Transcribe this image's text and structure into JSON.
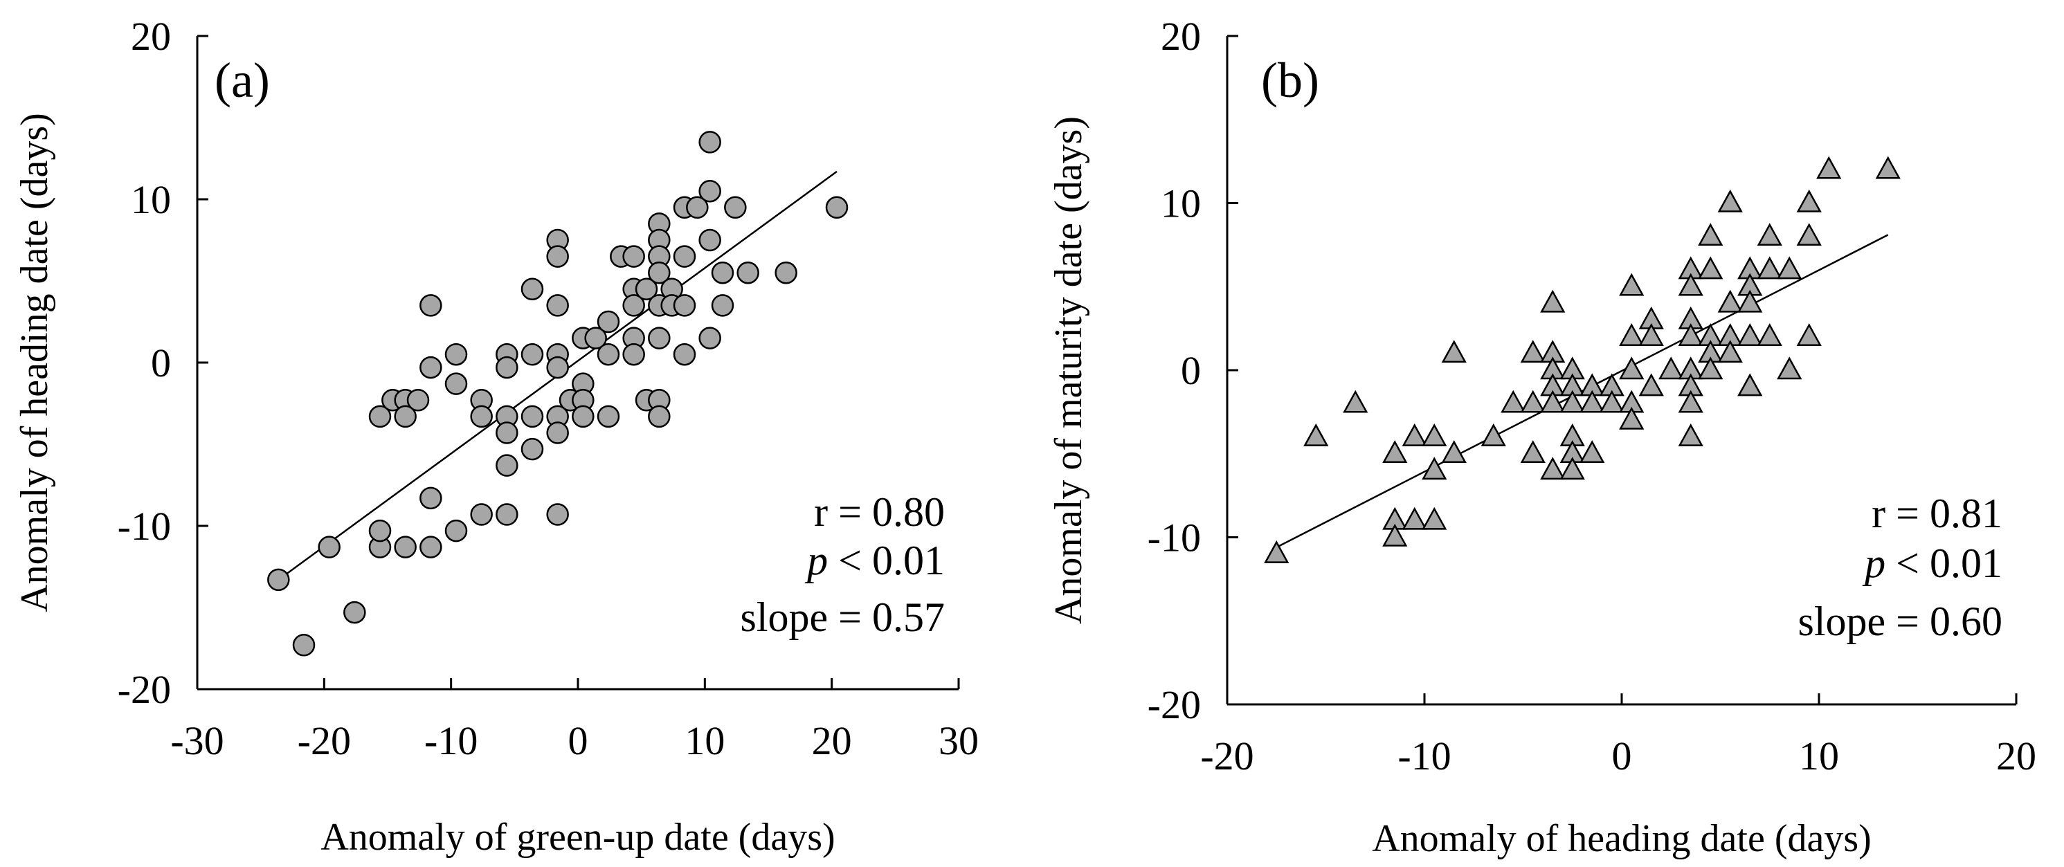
{
  "chart_data": [
    {
      "type": "scatter",
      "panel_label": "(a)",
      "xlabel": "Anomaly of green-up date (days)",
      "ylabel": "Anomaly of heading date (days)",
      "xlim": [
        -30,
        30
      ],
      "ylim": [
        -20,
        20
      ],
      "xticks": [
        -30,
        -20,
        -10,
        0,
        10,
        20,
        30
      ],
      "yticks": [
        -20,
        -10,
        0,
        10,
        20
      ],
      "marker": "circle",
      "marker_color": "#a6a6a6",
      "stats": {
        "r_text": "r = 0.80",
        "p_symbol": "p",
        "p_rest": " < 0.01",
        "slope_text": "slope = 0.57"
      },
      "fit_line": {
        "x": [
          -23.6,
          20.4
        ],
        "y": [
          -13.3,
          11.7
        ]
      },
      "points": [
        [
          -23.6,
          -13.3
        ],
        [
          -21.6,
          -17.3
        ],
        [
          -19.6,
          -11.3
        ],
        [
          -17.6,
          -15.3
        ],
        [
          -15.6,
          -11.3
        ],
        [
          -15.6,
          -10.3
        ],
        [
          -15.6,
          -3.3
        ],
        [
          -14.6,
          -2.3
        ],
        [
          -13.6,
          -2.3
        ],
        [
          -13.6,
          -3.3
        ],
        [
          -13.6,
          -11.3
        ],
        [
          -12.6,
          -2.3
        ],
        [
          -11.6,
          3.5
        ],
        [
          -11.6,
          -0.3
        ],
        [
          -11.6,
          -8.3
        ],
        [
          -11.6,
          -11.3
        ],
        [
          -9.6,
          0.5
        ],
        [
          -9.6,
          -1.3
        ],
        [
          -9.6,
          -10.3
        ],
        [
          -7.6,
          -2.3
        ],
        [
          -7.6,
          -3.3
        ],
        [
          -7.6,
          -9.3
        ],
        [
          -5.6,
          0.5
        ],
        [
          -5.6,
          -0.3
        ],
        [
          -5.6,
          -3.3
        ],
        [
          -5.6,
          -4.3
        ],
        [
          -5.6,
          -6.3
        ],
        [
          -5.6,
          -9.3
        ],
        [
          -3.6,
          4.5
        ],
        [
          -3.6,
          0.5
        ],
        [
          -3.6,
          -3.3
        ],
        [
          -3.6,
          -5.3
        ],
        [
          -1.6,
          7.5
        ],
        [
          -1.6,
          6.5
        ],
        [
          -1.6,
          3.5
        ],
        [
          -1.6,
          0.5
        ],
        [
          -1.6,
          -0.3
        ],
        [
          -1.6,
          -3.3
        ],
        [
          -1.6,
          -4.3
        ],
        [
          -1.6,
          -9.3
        ],
        [
          -0.6,
          -2.3
        ],
        [
          0.4,
          1.5
        ],
        [
          0.4,
          -1.3
        ],
        [
          0.4,
          -2.3
        ],
        [
          0.4,
          -3.3
        ],
        [
          1.4,
          1.5
        ],
        [
          2.4,
          2.5
        ],
        [
          2.4,
          0.5
        ],
        [
          2.4,
          -3.3
        ],
        [
          3.4,
          6.5
        ],
        [
          4.4,
          6.5
        ],
        [
          4.4,
          4.5
        ],
        [
          4.4,
          3.5
        ],
        [
          4.4,
          1.5
        ],
        [
          4.4,
          0.5
        ],
        [
          5.4,
          4.5
        ],
        [
          5.4,
          -2.3
        ],
        [
          6.4,
          8.5
        ],
        [
          6.4,
          7.5
        ],
        [
          6.4,
          6.5
        ],
        [
          6.4,
          5.5
        ],
        [
          6.4,
          3.5
        ],
        [
          6.4,
          1.5
        ],
        [
          6.4,
          -2.3
        ],
        [
          6.4,
          -3.3
        ],
        [
          7.4,
          4.5
        ],
        [
          7.4,
          3.5
        ],
        [
          8.4,
          9.5
        ],
        [
          8.4,
          6.5
        ],
        [
          8.4,
          3.5
        ],
        [
          8.4,
          0.5
        ],
        [
          9.4,
          9.5
        ],
        [
          10.4,
          13.5
        ],
        [
          10.4,
          10.5
        ],
        [
          10.4,
          7.5
        ],
        [
          10.4,
          1.5
        ],
        [
          11.4,
          5.5
        ],
        [
          11.4,
          3.5
        ],
        [
          12.4,
          9.5
        ],
        [
          13.4,
          5.5
        ],
        [
          16.4,
          5.5
        ],
        [
          20.4,
          9.5
        ]
      ]
    },
    {
      "type": "scatter",
      "panel_label": "(b)",
      "xlabel": "Anomaly of heading date (days)",
      "ylabel": "Anomaly of maturity date (days)",
      "xlim": [
        -20,
        20
      ],
      "ylim": [
        -20,
        20
      ],
      "xticks": [
        -20,
        -10,
        0,
        10,
        20
      ],
      "yticks": [
        -20,
        -10,
        0,
        10,
        20
      ],
      "marker": "triangle",
      "marker_color": "#a6a6a6",
      "stats": {
        "r_text": "r = 0.81",
        "p_symbol": "p",
        "p_rest": " < 0.01",
        "slope_text": "slope = 0.60"
      },
      "fit_line": {
        "x": [
          -17.5,
          13.5
        ],
        "y": [
          -10.6,
          8.1
        ]
      },
      "points": [
        [
          -17.5,
          -11
        ],
        [
          -15.5,
          -4
        ],
        [
          -13.5,
          -2
        ],
        [
          -11.5,
          -5
        ],
        [
          -11.5,
          -9
        ],
        [
          -11.5,
          -10
        ],
        [
          -10.5,
          -4
        ],
        [
          -10.5,
          -9
        ],
        [
          -9.5,
          -4
        ],
        [
          -9.5,
          -6
        ],
        [
          -9.5,
          -9
        ],
        [
          -8.5,
          -5
        ],
        [
          -8.5,
          1
        ],
        [
          -6.5,
          -4
        ],
        [
          -5.5,
          -2
        ],
        [
          -4.5,
          1
        ],
        [
          -4.5,
          -2
        ],
        [
          -4.5,
          -5
        ],
        [
          -3.5,
          4
        ],
        [
          -3.5,
          1
        ],
        [
          -3.5,
          0
        ],
        [
          -3.5,
          -1
        ],
        [
          -3.5,
          -2
        ],
        [
          -3.5,
          -6
        ],
        [
          -2.5,
          0
        ],
        [
          -2.5,
          -1
        ],
        [
          -2.5,
          -2
        ],
        [
          -2.5,
          -4
        ],
        [
          -2.5,
          -5
        ],
        [
          -2.5,
          -6
        ],
        [
          -1.5,
          -1
        ],
        [
          -1.5,
          -2
        ],
        [
          -1.5,
          -5
        ],
        [
          -0.5,
          -1
        ],
        [
          -0.5,
          -2
        ],
        [
          0.5,
          5
        ],
        [
          0.5,
          2
        ],
        [
          0.5,
          0
        ],
        [
          0.5,
          -2
        ],
        [
          0.5,
          -3
        ],
        [
          1.5,
          3
        ],
        [
          1.5,
          2
        ],
        [
          1.5,
          -1
        ],
        [
          2.5,
          0
        ],
        [
          3.5,
          6
        ],
        [
          3.5,
          5
        ],
        [
          3.5,
          3
        ],
        [
          3.5,
          2
        ],
        [
          3.5,
          0
        ],
        [
          3.5,
          -1
        ],
        [
          3.5,
          -2
        ],
        [
          3.5,
          -4
        ],
        [
          4.5,
          8
        ],
        [
          4.5,
          6
        ],
        [
          4.5,
          2
        ],
        [
          4.5,
          1
        ],
        [
          4.5,
          0
        ],
        [
          5.5,
          10
        ],
        [
          5.5,
          4
        ],
        [
          5.5,
          2
        ],
        [
          5.5,
          1
        ],
        [
          6.5,
          6
        ],
        [
          6.5,
          5
        ],
        [
          6.5,
          4
        ],
        [
          6.5,
          2
        ],
        [
          6.5,
          -1
        ],
        [
          7.5,
          8
        ],
        [
          7.5,
          6
        ],
        [
          7.5,
          2
        ],
        [
          8.5,
          6
        ],
        [
          8.5,
          0
        ],
        [
          9.5,
          10
        ],
        [
          9.5,
          8
        ],
        [
          9.5,
          2
        ],
        [
          10.5,
          12
        ],
        [
          13.5,
          12
        ]
      ]
    }
  ]
}
